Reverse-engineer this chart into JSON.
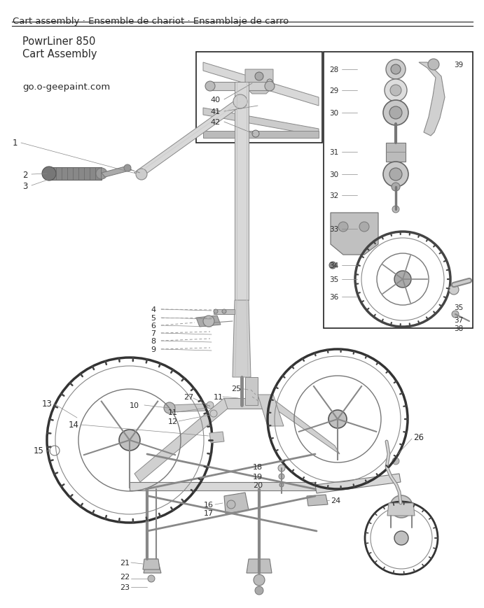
{
  "title_line": "Cart assembly · Ensemble de chariot · Ensamblaje de carro",
  "subtitle1": "PowrLiner 850",
  "subtitle2": "Cart Assembly",
  "website": "go.o-geepaint.com",
  "bg_color": "#ffffff",
  "text_color": "#2a2a2a",
  "line_color": "#555555",
  "border_color": "#222222",
  "fig_width": 6.72,
  "fig_height": 8.5,
  "title_fontsize": 9.5,
  "sub_fontsize": 10.5,
  "web_fontsize": 9.5,
  "lbl_fontsize": 8.0,
  "diagram_line_color": "#666666",
  "diagram_fill_light": "#cccccc",
  "diagram_fill_mid": "#999999",
  "diagram_fill_dark": "#555555"
}
